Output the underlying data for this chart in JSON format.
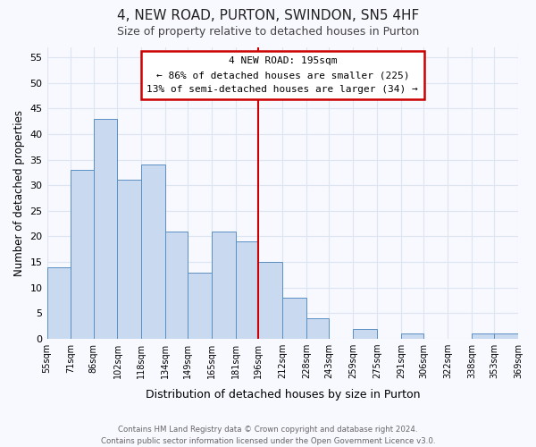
{
  "title": "4, NEW ROAD, PURTON, SWINDON, SN5 4HF",
  "subtitle": "Size of property relative to detached houses in Purton",
  "bar_values": [
    14,
    33,
    43,
    31,
    34,
    21,
    13,
    21,
    19,
    15,
    8,
    4,
    0,
    2,
    0,
    1,
    0,
    0,
    1,
    1
  ],
  "bin_edges": [
    55,
    71,
    86,
    102,
    118,
    134,
    149,
    165,
    181,
    196,
    212,
    228,
    243,
    259,
    275,
    291,
    306,
    322,
    338,
    353,
    369
  ],
  "x_tick_labels": [
    "55sqm",
    "71sqm",
    "86sqm",
    "102sqm",
    "118sqm",
    "134sqm",
    "149sqm",
    "165sqm",
    "181sqm",
    "196sqm",
    "212sqm",
    "228sqm",
    "243sqm",
    "259sqm",
    "275sqm",
    "291sqm",
    "306sqm",
    "322sqm",
    "338sqm",
    "353sqm",
    "369sqm"
  ],
  "bar_color": "#c9d9f0",
  "bar_edge_color": "#5a8fc3",
  "red_line_x": 196,
  "ylabel": "Number of detached properties",
  "xlabel": "Distribution of detached houses by size in Purton",
  "ylim": [
    0,
    57
  ],
  "yticks": [
    0,
    5,
    10,
    15,
    20,
    25,
    30,
    35,
    40,
    45,
    50,
    55
  ],
  "annotation_title": "4 NEW ROAD: 195sqm",
  "annotation_line1": "← 86% of detached houses are smaller (225)",
  "annotation_line2": "13% of semi-detached houses are larger (34) →",
  "annotation_box_color": "#ffffff",
  "annotation_box_edge_color": "#cc0000",
  "footer_line1": "Contains HM Land Registry data © Crown copyright and database right 2024.",
  "footer_line2": "Contains public sector information licensed under the Open Government Licence v3.0.",
  "background_color": "#f8f8ff",
  "grid_color": "#dde6f0"
}
